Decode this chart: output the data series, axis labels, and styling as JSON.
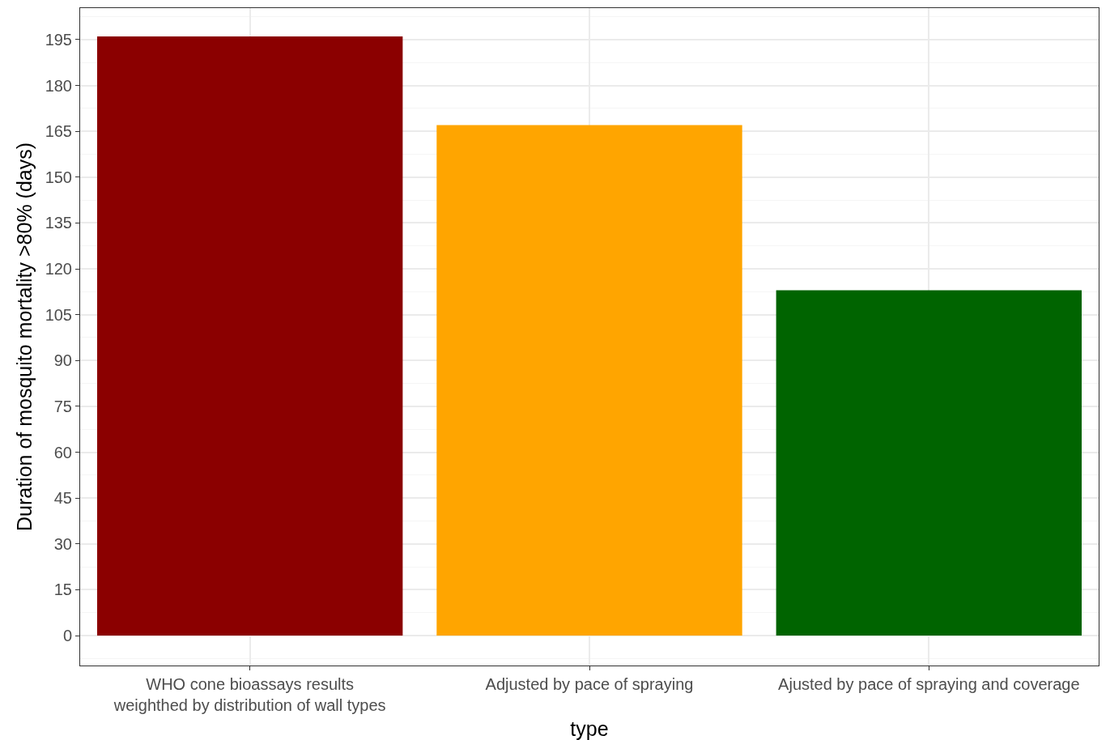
{
  "chart_data": {
    "type": "bar",
    "xlabel": "type",
    "ylabel": "Duration of mosquito mortality >80% (days)",
    "categories": [
      "WHO cone bioassays results\nweighthed by distribution of wall types",
      "Adjusted by pace of spraying",
      "Ajusted by pace of spraying and coverage"
    ],
    "values": [
      196,
      167,
      113
    ],
    "colors": [
      "#8b0000",
      "#ffa500",
      "#006400"
    ],
    "ylim": [
      -9.8,
      205.3
    ],
    "yticks": [
      0,
      15,
      30,
      45,
      60,
      75,
      90,
      105,
      120,
      135,
      150,
      165,
      180,
      195
    ],
    "grid": true
  }
}
